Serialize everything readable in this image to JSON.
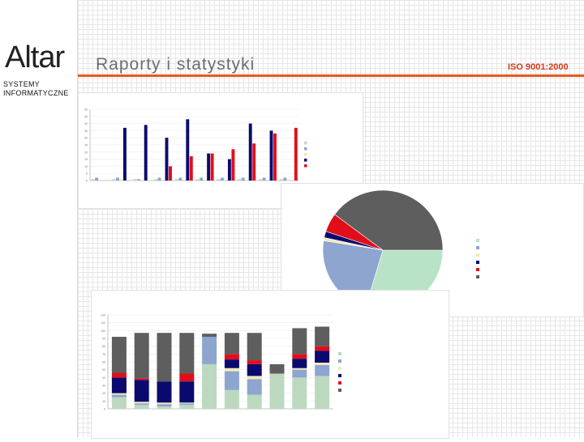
{
  "header": {
    "logo_text": "Altar",
    "logo_subtitle_line1": "SYSTEMY",
    "logo_subtitle_line2": "INFORMATYCZNE",
    "title": "Raporty i statystyki",
    "iso_badge": "ISO 9001:2000"
  },
  "colors": {
    "accent": "#e45a1e",
    "iso_text": "#d83a16",
    "series": [
      "#bcd9c0",
      "#8ea5cf",
      "#f3e8b8",
      "#0a0a6e",
      "#e10e1a",
      "#5e5e5e"
    ]
  },
  "chart_data": [
    {
      "type": "bar",
      "title": "",
      "ylabel": "",
      "ylim": [
        0,
        50
      ],
      "categories": [
        "",
        "",
        "",
        "",
        "",
        "",
        "",
        "",
        "",
        ""
      ],
      "series": [
        {
          "name": "",
          "values": [
            1,
            1,
            1,
            1,
            1,
            1,
            1,
            1,
            1,
            1
          ]
        },
        {
          "name": "",
          "values": [
            2,
            2,
            1,
            2,
            2,
            2,
            2,
            2,
            2,
            2
          ]
        },
        {
          "name": "",
          "values": [
            0,
            1,
            0,
            0,
            0,
            0,
            0,
            0,
            0,
            0
          ]
        },
        {
          "name": "",
          "values": [
            0,
            37,
            39,
            30,
            43,
            19,
            15,
            40,
            35,
            0
          ]
        },
        {
          "name": "",
          "values": [
            0,
            0,
            0,
            10,
            17,
            19,
            22,
            26,
            33,
            37
          ]
        }
      ],
      "legend_entries": [
        "",
        "",
        "",
        "",
        ""
      ]
    },
    {
      "type": "pie",
      "title": "",
      "slices": [
        {
          "label": "",
          "value": 35
        },
        {
          "label": "",
          "value": 27
        },
        {
          "label": "",
          "value": 1
        },
        {
          "label": "",
          "value": 2
        },
        {
          "label": "",
          "value": 6
        },
        {
          "label": "",
          "value": 47
        }
      ]
    },
    {
      "type": "bar",
      "stacked": true,
      "title": "",
      "ylabel": "",
      "xlabel": "",
      "ylim": [
        0,
        120
      ],
      "categories": [
        "",
        "",
        "",
        "",
        "",
        "",
        "",
        "",
        "",
        ""
      ],
      "series": [
        {
          "name": "",
          "values": [
            15,
            5,
            3,
            5,
            57,
            24,
            18,
            45,
            40,
            42
          ]
        },
        {
          "name": "",
          "values": [
            3,
            2,
            3,
            2,
            35,
            24,
            20,
            0,
            10,
            14
          ]
        },
        {
          "name": "",
          "values": [
            2,
            2,
            2,
            1,
            0,
            4,
            4,
            0,
            2,
            3
          ]
        },
        {
          "name": "",
          "values": [
            20,
            28,
            27,
            27,
            0,
            11,
            15,
            0,
            12,
            15
          ]
        },
        {
          "name": "",
          "values": [
            6,
            2,
            0,
            10,
            0,
            7,
            5,
            0,
            6,
            6
          ]
        },
        {
          "name": "",
          "values": [
            46,
            58,
            62,
            52,
            4,
            27,
            35,
            12,
            33,
            25
          ]
        }
      ],
      "legend_entries": [
        "",
        "",
        "",
        "",
        "",
        ""
      ]
    }
  ]
}
